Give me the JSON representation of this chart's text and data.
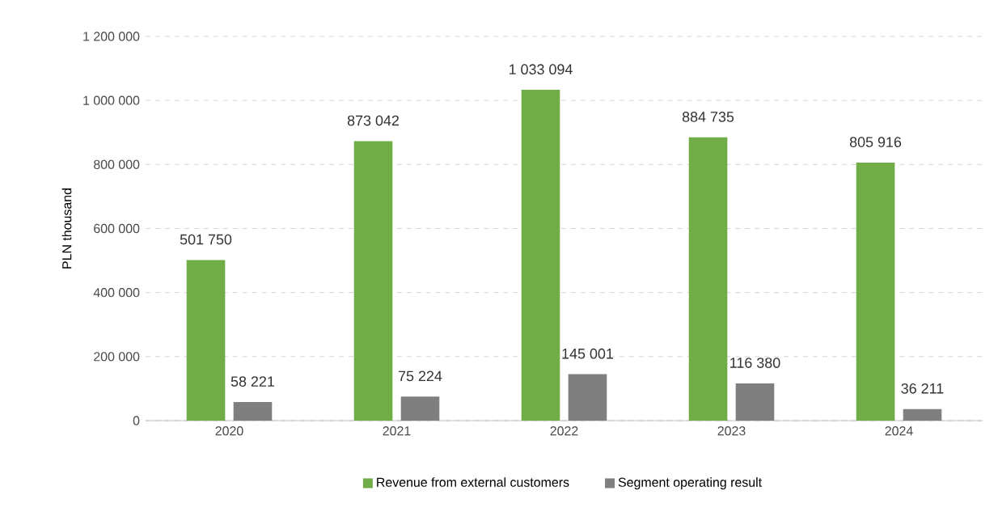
{
  "chart_data": {
    "type": "bar",
    "ylabel": "PLN thousand",
    "categories": [
      "2020",
      "2021",
      "2022",
      "2023",
      "2024"
    ],
    "series": [
      {
        "name": "Revenue from external customers",
        "color": "#70ad47",
        "values": [
          501750,
          873042,
          1033094,
          884735,
          805916
        ],
        "value_labels": [
          "501 750",
          "873 042",
          "1 033 094",
          "884 735",
          "805 916"
        ]
      },
      {
        "name": "Segment operating result",
        "color": "#7f7f7f",
        "values": [
          58221,
          75224,
          145001,
          116380,
          36211
        ],
        "value_labels": [
          "58 221",
          "75 224",
          "145 001",
          "116 380",
          "36 211"
        ]
      }
    ],
    "ylim": [
      0,
      1200000
    ],
    "yticks": [
      0,
      {
        "value": 200000,
        "label": "200 000"
      },
      {
        "value": 400000,
        "label": "400 000"
      },
      {
        "value": 600000,
        "label": "600 000"
      },
      {
        "value": 800000,
        "label": "800 000"
      },
      {
        "value": 1000000,
        "label": "1 000 000"
      },
      {
        "value": 1200000,
        "label": "1 200 000"
      }
    ],
    "grid": "y",
    "legend": "bottom"
  }
}
